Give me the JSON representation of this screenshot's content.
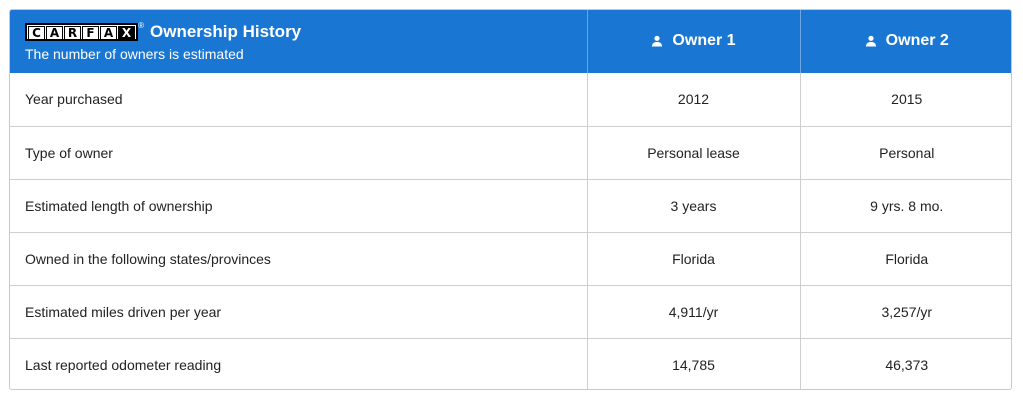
{
  "header": {
    "logo_letters": [
      "C",
      "A",
      "R",
      "F",
      "A",
      "X"
    ],
    "logo_registered": "®",
    "title": "Ownership History",
    "subtitle": "The number of owners is estimated",
    "owners": [
      {
        "label": "Owner 1",
        "icon": "person-icon"
      },
      {
        "label": "Owner 2",
        "icon": "person-icon"
      }
    ]
  },
  "rows": [
    {
      "label": "Year purchased",
      "values": [
        "2012",
        "2015"
      ]
    },
    {
      "label": "Type of owner",
      "values": [
        "Personal lease",
        "Personal"
      ]
    },
    {
      "label": "Estimated length of ownership",
      "values": [
        "3 years",
        "9 yrs. 8 mo."
      ]
    },
    {
      "label": "Owned in the following states/provinces",
      "values": [
        "Florida",
        "Florida"
      ]
    },
    {
      "label": "Estimated miles driven per year",
      "values": [
        "4,911/yr",
        "3,257/yr"
      ]
    },
    {
      "label": "Last reported odometer reading",
      "values": [
        "14,785",
        "46,373"
      ]
    }
  ],
  "colors": {
    "header_bg": "#1976d2",
    "border": "#cfcfcf",
    "text": "#222222"
  }
}
